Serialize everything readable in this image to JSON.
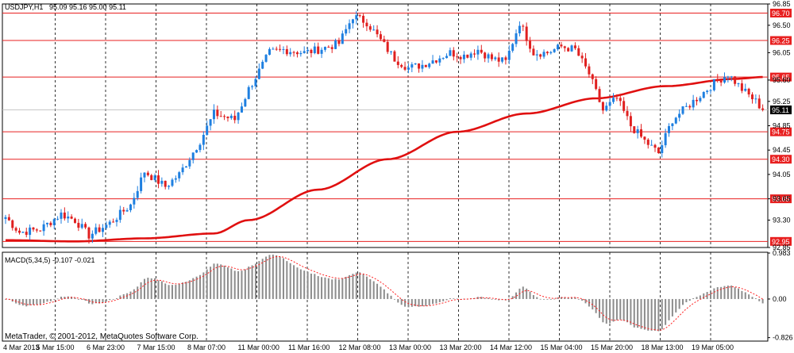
{
  "chart_data": {
    "type": "candlestick",
    "symbol_header": "USDJPY,H1",
    "ohlc_header": "95.09 95.16 95.00 95.11",
    "current_price": "95.11",
    "ylim": [
      92.85,
      96.85
    ],
    "price_ticks": [
      "96.85",
      "96.50",
      "96.05",
      "95.60",
      "95.25",
      "94.85",
      "94.45",
      "94.05",
      "93.65",
      "93.30",
      "92.85"
    ],
    "price_tick_values": [
      96.85,
      96.5,
      96.05,
      95.6,
      95.25,
      94.85,
      94.45,
      94.05,
      93.65,
      93.3,
      92.85
    ],
    "levels": [
      {
        "label": "96.70",
        "value": 96.7
      },
      {
        "label": "96.25",
        "value": 96.25
      },
      {
        "label": "95.65",
        "value": 95.65
      },
      {
        "label": "94.75",
        "value": 94.75
      },
      {
        "label": "94.30",
        "value": 94.3
      },
      {
        "label": "93.65",
        "value": 93.65
      },
      {
        "label": "92.95",
        "value": 92.95
      }
    ],
    "x_tick_labels": [
      "4 Mar 2013",
      "5 Mar 15:00",
      "6 Mar 23:00",
      "7 Mar 15:00",
      "8 Mar 07:00",
      "11 Mar 00:00",
      "11 Mar 16:00",
      "12 Mar 08:00",
      "13 Mar 00:00",
      "13 Mar 20:00",
      "14 Mar 12:00",
      "15 Mar 04:00",
      "15 Mar 20:00",
      "18 Mar 13:00",
      "19 Mar 05:00"
    ],
    "anchors": [
      [
        0,
        93.35
      ],
      [
        4,
        93.1
      ],
      [
        10,
        93.15
      ],
      [
        16,
        93.4
      ],
      [
        20,
        93.3
      ],
      [
        24,
        93.05
      ],
      [
        30,
        93.25
      ],
      [
        36,
        93.55
      ],
      [
        40,
        94.1
      ],
      [
        46,
        93.85
      ],
      [
        50,
        94.05
      ],
      [
        56,
        94.6
      ],
      [
        60,
        95.05
      ],
      [
        66,
        94.95
      ],
      [
        70,
        95.45
      ],
      [
        76,
        96.05
      ],
      [
        80,
        96.1
      ],
      [
        86,
        96.05
      ],
      [
        90,
        96.1
      ],
      [
        96,
        96.2
      ],
      [
        100,
        96.65
      ],
      [
        104,
        96.55
      ],
      [
        108,
        96.25
      ],
      [
        112,
        95.95
      ],
      [
        116,
        95.8
      ],
      [
        120,
        95.85
      ],
      [
        124,
        95.95
      ],
      [
        128,
        96.05
      ],
      [
        132,
        96.0
      ],
      [
        136,
        96.1
      ],
      [
        140,
        95.95
      ],
      [
        144,
        95.9
      ],
      [
        148,
        96.55
      ],
      [
        152,
        96.05
      ],
      [
        156,
        96.05
      ],
      [
        160,
        96.15
      ],
      [
        164,
        96.1
      ],
      [
        168,
        95.7
      ],
      [
        172,
        95.1
      ],
      [
        176,
        95.3
      ],
      [
        180,
        94.85
      ],
      [
        184,
        94.6
      ],
      [
        188,
        94.4
      ],
      [
        192,
        94.95
      ],
      [
        196,
        95.15
      ],
      [
        200,
        95.35
      ],
      [
        204,
        95.55
      ],
      [
        208,
        95.7
      ],
      [
        212,
        95.45
      ],
      [
        216,
        95.25
      ],
      [
        218,
        95.11
      ]
    ],
    "ma_points": [
      [
        0,
        92.97
      ],
      [
        20,
        92.95
      ],
      [
        40,
        93.0
      ],
      [
        60,
        93.08
      ],
      [
        70,
        93.3
      ],
      [
        90,
        93.8
      ],
      [
        110,
        94.3
      ],
      [
        130,
        94.75
      ],
      [
        150,
        95.05
      ],
      [
        170,
        95.3
      ],
      [
        190,
        95.5
      ],
      [
        210,
        95.62
      ],
      [
        218,
        95.65
      ]
    ],
    "macd": {
      "label": "MACD(5,34,5) -0.107 -0.021",
      "ticks": [
        "0.983",
        "0.00",
        "-0.826"
      ],
      "tick_values": [
        0.983,
        0.0,
        -0.826
      ],
      "ylim": [
        -0.9,
        1.0
      ]
    },
    "copyright": "MetaTrader, © 2001-2012, MetaQuotes Software Corp."
  },
  "colors": {
    "bull": "#1e7fe0",
    "bear": "#e02020",
    "ma": "#e01010",
    "level": "#e82020",
    "grid": "#000000",
    "hist": "#8c8c8c",
    "signal": "#ff2020",
    "current_box": "#000000"
  }
}
